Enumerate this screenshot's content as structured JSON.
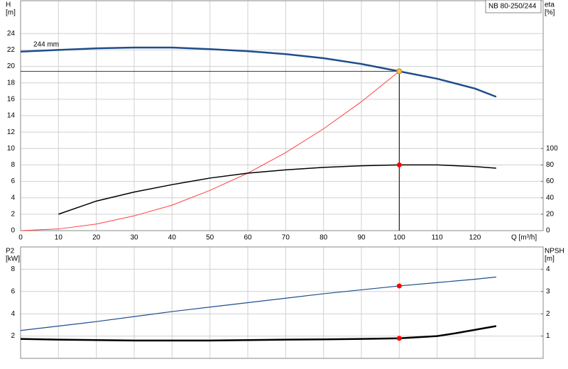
{
  "chart_data": [
    {
      "type": "line",
      "title": "NB 80-250/244",
      "ylabel": "H",
      "yunit": "[m]",
      "y2label": "eta",
      "y2unit": "[%]",
      "xlabel": "Q [m³/h]",
      "xlim": [
        0,
        138
      ],
      "xticks": [
        0,
        10,
        20,
        30,
        40,
        50,
        60,
        70,
        80,
        90,
        100,
        110,
        120
      ],
      "ylim": [
        0,
        28
      ],
      "yticks": [
        0,
        2,
        4,
        6,
        8,
        10,
        12,
        14,
        16,
        18,
        20,
        22,
        24
      ],
      "y2lim": [
        0,
        280
      ],
      "y2ticks": [
        0,
        20,
        40,
        60,
        80,
        100
      ],
      "grid": true,
      "show_xtick_labels": true,
      "series": [
        {
          "name": "244 mm",
          "color": "#1f4e8c",
          "width": 2.5,
          "axis": "y",
          "x": [
            0,
            10,
            20,
            30,
            40,
            50,
            60,
            70,
            80,
            90,
            100,
            110,
            120,
            125.6
          ],
          "values": [
            21.8,
            22.0,
            22.2,
            22.3,
            22.3,
            22.1,
            21.85,
            21.5,
            21.0,
            20.3,
            19.4,
            18.5,
            17.3,
            16.3
          ]
        },
        {
          "color": "#ff4040",
          "width": 1,
          "axis": "y",
          "x": [
            0,
            10,
            20,
            30,
            40,
            50,
            60,
            70,
            80,
            90,
            100
          ],
          "values": [
            0,
            0.2,
            0.8,
            1.8,
            3.1,
            4.9,
            7.0,
            9.5,
            12.4,
            15.7,
            19.4
          ]
        },
        {
          "color": "#000000",
          "width": 1.5,
          "axis": "y2",
          "x": [
            10,
            20,
            30,
            40,
            50,
            60,
            70,
            80,
            90,
            100,
            110,
            120,
            125.6
          ],
          "values": [
            20,
            36,
            47,
            56,
            64,
            70,
            74,
            77,
            79,
            80,
            80,
            78,
            76
          ]
        }
      ],
      "markers": [
        {
          "x": 100,
          "y": 19.4,
          "axis": "y",
          "color": "#f5c242",
          "guides": true
        },
        {
          "x": 100,
          "y": 80,
          "axis": "y2",
          "color": "#ff0000"
        }
      ]
    },
    {
      "type": "line",
      "ylabel": "P2",
      "yunit": "[kW]",
      "y2label": "NPSH",
      "y2unit": "[m]",
      "xlim": [
        0,
        138
      ],
      "xticks": [
        0,
        10,
        20,
        30,
        40,
        50,
        60,
        70,
        80,
        90,
        100,
        110,
        120
      ],
      "ylim": [
        0,
        10
      ],
      "yticks": [
        2,
        4,
        6,
        8
      ],
      "y2lim": [
        0,
        5
      ],
      "y2ticks": [
        1,
        2,
        3,
        4
      ],
      "grid": true,
      "show_xtick_labels": false,
      "series": [
        {
          "color": "#1f4e8c",
          "width": 1.2,
          "axis": "y",
          "x": [
            0,
            10,
            20,
            30,
            40,
            50,
            60,
            70,
            80,
            90,
            100,
            110,
            120,
            125.6
          ],
          "values": [
            2.5,
            2.9,
            3.3,
            3.75,
            4.2,
            4.6,
            5.0,
            5.4,
            5.8,
            6.15,
            6.5,
            6.8,
            7.1,
            7.3
          ]
        },
        {
          "color": "#000000",
          "width": 2.5,
          "axis": "y2",
          "x": [
            0,
            10,
            20,
            30,
            40,
            50,
            60,
            70,
            80,
            90,
            100,
            110,
            115,
            125.6
          ],
          "values": [
            0.87,
            0.84,
            0.82,
            0.8,
            0.8,
            0.8,
            0.82,
            0.84,
            0.85,
            0.87,
            0.9,
            1.0,
            1.13,
            1.45
          ]
        }
      ],
      "markers": [
        {
          "x": 100,
          "y": 6.5,
          "axis": "y",
          "color": "#ff0000"
        },
        {
          "x": 100,
          "y": 0.9,
          "axis": "y2",
          "color": "#ff0000"
        }
      ]
    }
  ]
}
